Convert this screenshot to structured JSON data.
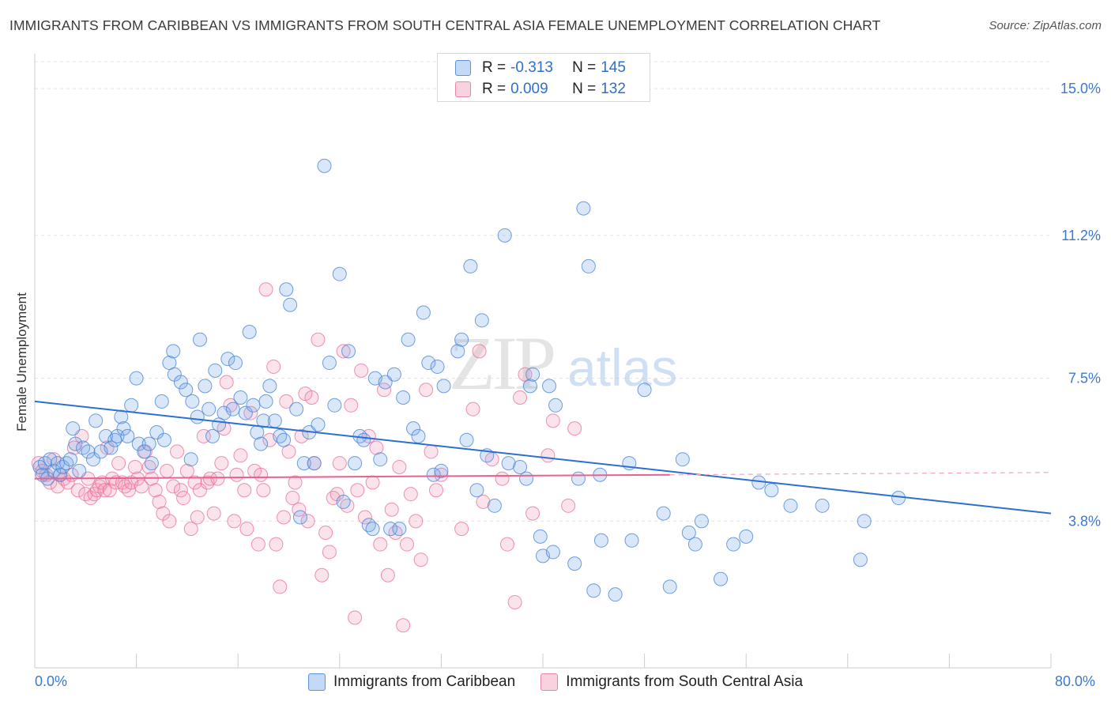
{
  "header": {
    "title": "IMMIGRANTS FROM CARIBBEAN VS IMMIGRANTS FROM SOUTH CENTRAL ASIA FEMALE UNEMPLOYMENT CORRELATION CHART",
    "source": "Source: ZipAtlas.com"
  },
  "watermark": {
    "zip": "ZIP",
    "atlas": "atlas"
  },
  "legend_top": {
    "rows": [
      {
        "r_label": "R = ",
        "r_value": "-0.313",
        "n_label": "N = ",
        "n_value": "145"
      },
      {
        "r_label": "R = ",
        "r_value": "0.009",
        "n_label": "N = ",
        "n_value": "132"
      }
    ]
  },
  "chart_data": {
    "type": "scatter",
    "title": "IMMIGRANTS FROM CARIBBEAN VS IMMIGRANTS FROM SOUTH CENTRAL ASIA FEMALE UNEMPLOYMENT CORRELATION CHART",
    "xlabel": "",
    "ylabel": "Female Unemployment",
    "xlim": [
      0,
      80
    ],
    "ylim": [
      0,
      15.7
    ],
    "x_tick_labels": [
      "0.0%",
      "80.0%"
    ],
    "y_ticks": [
      3.8,
      7.5,
      11.2,
      15.0
    ],
    "y_tick_labels": [
      "3.8%",
      "7.5%",
      "11.2%",
      "15.0%"
    ],
    "grid": "horizontal dashed",
    "legend_position": "bottom",
    "colors": {
      "caribbean": "#7aaae8",
      "south_central_asia": "#f29bb8",
      "caribbean_line": "#2d6fd0",
      "sca_line": "#e8628f",
      "tick_label": "#3b78d0"
    },
    "series": [
      {
        "name": "Immigrants from Caribbean",
        "n": 145,
        "r": -0.313,
        "trend": {
          "x0": 0,
          "y0": 6.9,
          "x1": 80,
          "y1": 4.0
        },
        "points": [
          [
            0.4,
            5.2
          ],
          [
            0.6,
            5.0
          ],
          [
            0.8,
            5.3
          ],
          [
            1.0,
            4.9
          ],
          [
            1.2,
            5.4
          ],
          [
            1.5,
            5.1
          ],
          [
            1.8,
            5.3
          ],
          [
            2.0,
            5.0
          ],
          [
            2.2,
            5.2
          ],
          [
            2.5,
            5.3
          ],
          [
            2.8,
            5.4
          ],
          [
            3.0,
            6.2
          ],
          [
            3.2,
            5.8
          ],
          [
            3.5,
            5.1
          ],
          [
            3.8,
            5.7
          ],
          [
            4.2,
            5.6
          ],
          [
            4.6,
            5.4
          ],
          [
            4.8,
            6.4
          ],
          [
            5.2,
            5.6
          ],
          [
            5.6,
            6.0
          ],
          [
            6.0,
            5.7
          ],
          [
            6.3,
            5.9
          ],
          [
            6.5,
            6.0
          ],
          [
            6.8,
            6.5
          ],
          [
            7.0,
            6.2
          ],
          [
            7.3,
            6.0
          ],
          [
            7.6,
            6.8
          ],
          [
            8.0,
            7.5
          ],
          [
            8.2,
            5.8
          ],
          [
            8.6,
            5.6
          ],
          [
            9.0,
            5.8
          ],
          [
            9.2,
            5.3
          ],
          [
            9.6,
            6.1
          ],
          [
            10.0,
            6.9
          ],
          [
            10.2,
            5.9
          ],
          [
            10.6,
            7.9
          ],
          [
            10.9,
            8.2
          ],
          [
            11.0,
            7.6
          ],
          [
            11.5,
            7.4
          ],
          [
            11.9,
            7.2
          ],
          [
            12.3,
            5.4
          ],
          [
            12.4,
            6.9
          ],
          [
            12.8,
            6.5
          ],
          [
            13.0,
            8.5
          ],
          [
            13.4,
            7.3
          ],
          [
            13.7,
            6.7
          ],
          [
            14.0,
            6.0
          ],
          [
            14.2,
            7.7
          ],
          [
            14.5,
            6.3
          ],
          [
            14.9,
            6.6
          ],
          [
            15.2,
            8.0
          ],
          [
            15.6,
            6.7
          ],
          [
            15.8,
            7.9
          ],
          [
            16.2,
            7.0
          ],
          [
            16.6,
            6.6
          ],
          [
            16.9,
            8.7
          ],
          [
            17.2,
            6.8
          ],
          [
            17.5,
            6.1
          ],
          [
            17.8,
            5.8
          ],
          [
            18.0,
            6.4
          ],
          [
            18.2,
            6.9
          ],
          [
            18.5,
            7.3
          ],
          [
            18.9,
            6.4
          ],
          [
            19.3,
            6.0
          ],
          [
            19.6,
            5.9
          ],
          [
            19.8,
            9.8
          ],
          [
            20.1,
            9.4
          ],
          [
            20.6,
            6.7
          ],
          [
            20.9,
            3.9
          ],
          [
            21.2,
            5.3
          ],
          [
            21.6,
            6.1
          ],
          [
            22.0,
            5.3
          ],
          [
            22.3,
            6.3
          ],
          [
            22.8,
            13.0
          ],
          [
            23.2,
            7.9
          ],
          [
            23.6,
            6.8
          ],
          [
            24.0,
            10.2
          ],
          [
            24.3,
            4.3
          ],
          [
            24.7,
            8.2
          ],
          [
            25.2,
            5.3
          ],
          [
            25.6,
            6.0
          ],
          [
            25.9,
            5.9
          ],
          [
            26.3,
            3.7
          ],
          [
            26.6,
            3.6
          ],
          [
            26.8,
            7.5
          ],
          [
            27.2,
            5.4
          ],
          [
            27.6,
            7.4
          ],
          [
            28.0,
            3.6
          ],
          [
            28.3,
            7.6
          ],
          [
            28.7,
            3.6
          ],
          [
            29.0,
            7.0
          ],
          [
            29.4,
            8.5
          ],
          [
            29.8,
            6.2
          ],
          [
            30.2,
            6.0
          ],
          [
            30.6,
            9.2
          ],
          [
            31.0,
            7.9
          ],
          [
            31.4,
            5.0
          ],
          [
            31.7,
            7.8
          ],
          [
            32.0,
            5.1
          ],
          [
            32.2,
            7.3
          ],
          [
            33.3,
            8.2
          ],
          [
            33.6,
            8.5
          ],
          [
            34.0,
            5.9
          ],
          [
            34.3,
            10.4
          ],
          [
            34.8,
            4.6
          ],
          [
            35.2,
            9.0
          ],
          [
            35.6,
            5.5
          ],
          [
            36.2,
            4.2
          ],
          [
            37.0,
            11.2
          ],
          [
            37.3,
            5.3
          ],
          [
            38.2,
            5.2
          ],
          [
            38.7,
            4.9
          ],
          [
            39.0,
            7.3
          ],
          [
            39.2,
            7.6
          ],
          [
            39.8,
            3.4
          ],
          [
            40.0,
            2.9
          ],
          [
            40.5,
            7.3
          ],
          [
            40.8,
            3.0
          ],
          [
            41.0,
            6.8
          ],
          [
            42.5,
            2.7
          ],
          [
            42.8,
            4.9
          ],
          [
            43.2,
            11.9
          ],
          [
            43.6,
            10.4
          ],
          [
            44.0,
            2.0
          ],
          [
            44.5,
            5.0
          ],
          [
            44.6,
            3.3
          ],
          [
            45.7,
            1.9
          ],
          [
            46.8,
            5.3
          ],
          [
            47.0,
            3.3
          ],
          [
            48.0,
            7.2
          ],
          [
            49.5,
            4.0
          ],
          [
            50.0,
            2.1
          ],
          [
            51.0,
            5.4
          ],
          [
            51.5,
            3.5
          ],
          [
            52.0,
            3.2
          ],
          [
            52.5,
            3.8
          ],
          [
            54.0,
            2.3
          ],
          [
            55.0,
            3.2
          ],
          [
            56.0,
            3.4
          ],
          [
            57.0,
            4.8
          ],
          [
            58.0,
            4.6
          ],
          [
            59.5,
            4.2
          ],
          [
            62.0,
            4.2
          ],
          [
            65.0,
            2.8
          ],
          [
            65.3,
            3.8
          ],
          [
            68.0,
            4.4
          ]
        ]
      },
      {
        "name": "Immigrants from South Central Asia",
        "n": 132,
        "r": 0.009,
        "trend": {
          "x0": 0,
          "y0": 4.9,
          "x1": 50,
          "y1": 5.0
        },
        "points": [
          [
            0.3,
            5.3
          ],
          [
            0.6,
            5.1
          ],
          [
            0.9,
            5.0
          ],
          [
            1.2,
            4.8
          ],
          [
            1.5,
            5.4
          ],
          [
            1.8,
            4.7
          ],
          [
            2.0,
            5.0
          ],
          [
            2.3,
            4.9
          ],
          [
            2.6,
            4.8
          ],
          [
            2.9,
            5.0
          ],
          [
            3.1,
            5.7
          ],
          [
            3.4,
            4.6
          ],
          [
            3.7,
            6.0
          ],
          [
            4.0,
            4.5
          ],
          [
            4.2,
            4.9
          ],
          [
            4.4,
            4.4
          ],
          [
            4.7,
            4.5
          ],
          [
            4.9,
            4.6
          ],
          [
            5.1,
            4.7
          ],
          [
            5.3,
            4.8
          ],
          [
            5.5,
            4.6
          ],
          [
            5.7,
            5.7
          ],
          [
            5.9,
            4.6
          ],
          [
            6.1,
            4.9
          ],
          [
            6.4,
            4.8
          ],
          [
            6.6,
            5.3
          ],
          [
            6.9,
            4.8
          ],
          [
            7.1,
            4.7
          ],
          [
            7.4,
            4.6
          ],
          [
            7.6,
            4.8
          ],
          [
            7.9,
            5.2
          ],
          [
            8.1,
            4.9
          ],
          [
            8.4,
            4.7
          ],
          [
            8.7,
            5.6
          ],
          [
            9.0,
            5.2
          ],
          [
            9.2,
            4.9
          ],
          [
            9.5,
            4.6
          ],
          [
            9.8,
            4.3
          ],
          [
            10.1,
            4.0
          ],
          [
            10.4,
            5.1
          ],
          [
            10.6,
            3.8
          ],
          [
            10.9,
            4.7
          ],
          [
            11.2,
            5.6
          ],
          [
            11.5,
            4.6
          ],
          [
            11.7,
            4.4
          ],
          [
            12.0,
            5.1
          ],
          [
            12.3,
            3.6
          ],
          [
            12.6,
            4.8
          ],
          [
            12.8,
            3.9
          ],
          [
            13.0,
            4.6
          ],
          [
            13.3,
            6.0
          ],
          [
            13.6,
            4.8
          ],
          [
            13.8,
            4.9
          ],
          [
            14.1,
            4.0
          ],
          [
            14.4,
            4.9
          ],
          [
            14.7,
            5.3
          ],
          [
            14.9,
            6.2
          ],
          [
            15.1,
            7.4
          ],
          [
            15.4,
            6.8
          ],
          [
            15.7,
            3.8
          ],
          [
            15.9,
            5.0
          ],
          [
            16.2,
            5.5
          ],
          [
            16.5,
            4.6
          ],
          [
            16.7,
            3.6
          ],
          [
            17.0,
            6.6
          ],
          [
            17.3,
            5.1
          ],
          [
            17.6,
            3.2
          ],
          [
            17.8,
            5.0
          ],
          [
            18.0,
            4.6
          ],
          [
            18.2,
            9.8
          ],
          [
            18.5,
            5.9
          ],
          [
            18.8,
            7.8
          ],
          [
            19.0,
            3.2
          ],
          [
            19.3,
            2.1
          ],
          [
            19.6,
            3.9
          ],
          [
            19.8,
            6.9
          ],
          [
            20.0,
            5.6
          ],
          [
            20.3,
            4.4
          ],
          [
            20.5,
            4.8
          ],
          [
            20.8,
            4.1
          ],
          [
            21.0,
            6.0
          ],
          [
            21.3,
            7.1
          ],
          [
            21.5,
            3.8
          ],
          [
            21.8,
            7.0
          ],
          [
            22.0,
            5.3
          ],
          [
            22.3,
            8.5
          ],
          [
            22.6,
            2.4
          ],
          [
            22.9,
            3.5
          ],
          [
            23.2,
            3.0
          ],
          [
            23.5,
            4.4
          ],
          [
            23.8,
            4.5
          ],
          [
            24.0,
            5.3
          ],
          [
            24.3,
            8.2
          ],
          [
            24.6,
            4.2
          ],
          [
            24.9,
            6.8
          ],
          [
            25.2,
            1.3
          ],
          [
            25.4,
            4.6
          ],
          [
            25.7,
            7.7
          ],
          [
            26.0,
            3.9
          ],
          [
            26.3,
            6.0
          ],
          [
            26.6,
            4.8
          ],
          [
            26.9,
            5.7
          ],
          [
            27.2,
            3.2
          ],
          [
            27.5,
            7.2
          ],
          [
            27.8,
            2.4
          ],
          [
            28.1,
            4.1
          ],
          [
            28.4,
            3.5
          ],
          [
            28.7,
            5.2
          ],
          [
            29.0,
            1.1
          ],
          [
            29.3,
            3.2
          ],
          [
            29.6,
            4.5
          ],
          [
            30.0,
            3.8
          ],
          [
            30.4,
            2.8
          ],
          [
            30.8,
            7.2
          ],
          [
            31.2,
            5.6
          ],
          [
            31.6,
            4.6
          ],
          [
            32.0,
            5.0
          ],
          [
            33.6,
            3.6
          ],
          [
            34.5,
            6.7
          ],
          [
            35.0,
            8.2
          ],
          [
            35.3,
            4.3
          ],
          [
            36.0,
            5.4
          ],
          [
            36.8,
            4.9
          ],
          [
            37.2,
            3.2
          ],
          [
            37.8,
            1.7
          ],
          [
            38.2,
            7.0
          ],
          [
            38.6,
            7.6
          ],
          [
            39.2,
            4.0
          ],
          [
            40.4,
            5.5
          ],
          [
            40.8,
            6.4
          ],
          [
            42.0,
            4.2
          ],
          [
            42.5,
            6.2
          ]
        ]
      }
    ]
  }
}
